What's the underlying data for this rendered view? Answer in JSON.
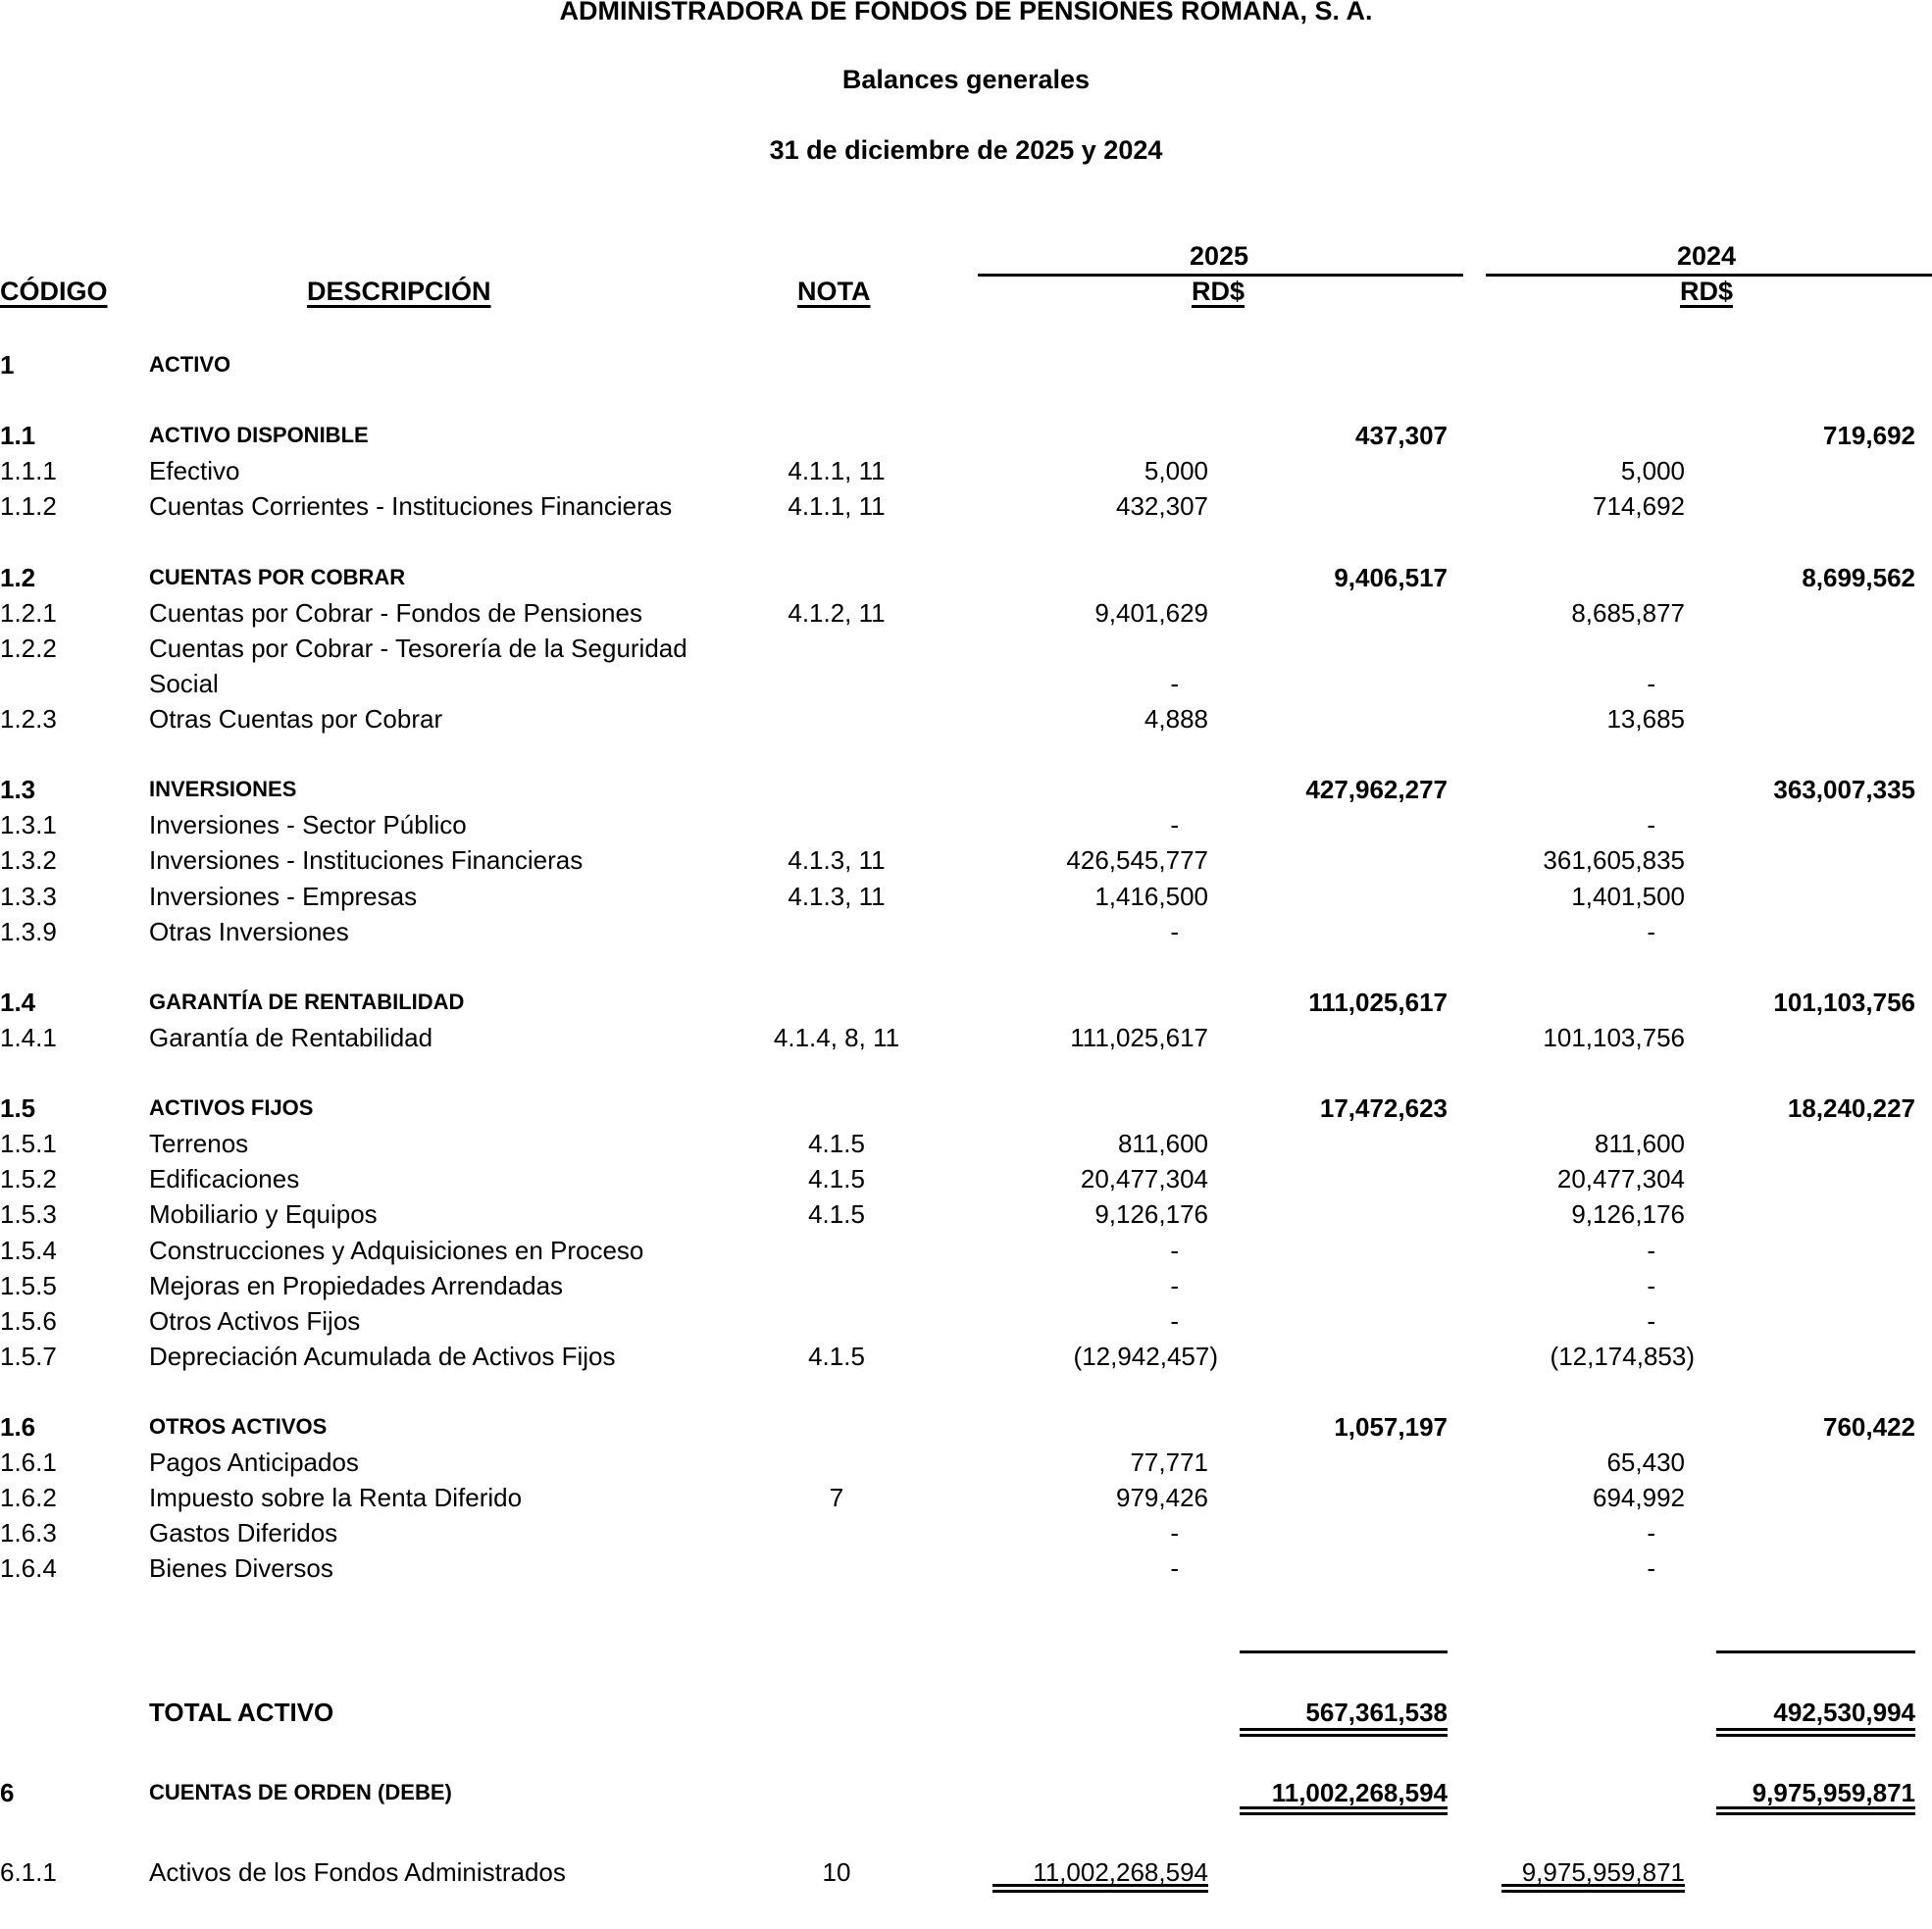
{
  "header": {
    "company": "ADMINISTRADORA DE FONDOS DE PENSIONES ROMANA, S. A.",
    "title": "Balances generales",
    "date": "31 de diciembre de 2025 y 2024"
  },
  "columns": {
    "code": "CÓDIGO",
    "description": "DESCRIPCIÓN",
    "note": "NOTA",
    "year1": "2025",
    "year2": "2024",
    "currency1": "RD$",
    "currency2": "RD$"
  },
  "rows": [
    {
      "type": "section",
      "code": "1",
      "desc": "ACTIVO"
    },
    {
      "type": "blank"
    },
    {
      "type": "section",
      "code": "1.1",
      "desc": "ACTIVO DISPONIBLE",
      "t2025": "437,307",
      "t2024": "719,692"
    },
    {
      "type": "item",
      "code": "1.1.1",
      "desc": "Efectivo",
      "nota": "4.1.1, 11",
      "v2025": "5,000",
      "v2024": "5,000"
    },
    {
      "type": "item",
      "code": "1.1.2",
      "desc": "Cuentas Corrientes - Instituciones Financieras",
      "nota": "4.1.1, 11",
      "v2025": "432,307",
      "v2024": "714,692"
    },
    {
      "type": "blank"
    },
    {
      "type": "section",
      "code": "1.2",
      "desc": "CUENTAS POR COBRAR",
      "t2025": "9,406,517",
      "t2024": "8,699,562"
    },
    {
      "type": "item",
      "code": "1.2.1",
      "desc": "Cuentas por Cobrar - Fondos de Pensiones",
      "nota": "4.1.2, 11",
      "v2025": "9,401,629",
      "v2024": "8,685,877"
    },
    {
      "type": "item",
      "code": "1.2.2",
      "desc": "Cuentas por Cobrar - Tesorería de la Seguridad"
    },
    {
      "type": "item",
      "desc": "Social",
      "v2025": "-",
      "v2024": "-"
    },
    {
      "type": "item",
      "code": "1.2.3",
      "desc": "Otras Cuentas por Cobrar",
      "v2025": "4,888",
      "v2024": "13,685"
    },
    {
      "type": "blank"
    },
    {
      "type": "section",
      "code": "1.3",
      "desc": "INVERSIONES",
      "t2025": "427,962,277",
      "t2024": "363,007,335"
    },
    {
      "type": "item",
      "code": "1.3.1",
      "desc": "Inversiones - Sector Público",
      "v2025": "-",
      "v2024": "-"
    },
    {
      "type": "item",
      "code": "1.3.2",
      "desc": "Inversiones - Instituciones Financieras",
      "nota": "4.1.3, 11",
      "v2025": "426,545,777",
      "v2024": "361,605,835"
    },
    {
      "type": "item",
      "code": "1.3.3",
      "desc": "Inversiones - Empresas",
      "nota": "4.1.3, 11",
      "v2025": "1,416,500",
      "v2024": "1,401,500"
    },
    {
      "type": "item",
      "code": "1.3.9",
      "desc": "Otras Inversiones",
      "v2025": "-",
      "v2024": "-"
    },
    {
      "type": "blank"
    },
    {
      "type": "section",
      "code": "1.4",
      "desc": "GARANTÍA DE RENTABILIDAD",
      "t2025": "111,025,617",
      "t2024": "101,103,756"
    },
    {
      "type": "item",
      "code": "1.4.1",
      "desc": "Garantía de Rentabilidad",
      "nota": "4.1.4, 8, 11",
      "v2025": "111,025,617",
      "v2024": "101,103,756"
    },
    {
      "type": "blank"
    },
    {
      "type": "section",
      "code": "1.5",
      "desc": "ACTIVOS FIJOS",
      "t2025": "17,472,623",
      "t2024": "18,240,227"
    },
    {
      "type": "item",
      "code": "1.5.1",
      "desc": "Terrenos",
      "nota": "4.1.5",
      "v2025": "811,600",
      "v2024": "811,600"
    },
    {
      "type": "item",
      "code": "1.5.2",
      "desc": "Edificaciones",
      "nota": "4.1.5",
      "v2025": "20,477,304",
      "v2024": "20,477,304"
    },
    {
      "type": "item",
      "code": "1.5.3",
      "desc": "Mobiliario y Equipos",
      "nota": "4.1.5",
      "v2025": "9,126,176",
      "v2024": "9,126,176"
    },
    {
      "type": "item",
      "code": "1.5.4",
      "desc": "Construcciones y Adquisiciones en Proceso",
      "v2025": "-",
      "v2024": "-"
    },
    {
      "type": "item",
      "code": "1.5.5",
      "desc": "Mejoras en Propiedades Arrendadas",
      "v2025": "-",
      "v2024": "-"
    },
    {
      "type": "item",
      "code": "1.5.6",
      "desc": "Otros Activos Fijos",
      "v2025": "-",
      "v2024": "-"
    },
    {
      "type": "item",
      "code": "1.5.7",
      "desc": "Depreciación Acumulada de Activos Fijos",
      "nota": "4.1.5",
      "v2025": "(12,942,457)",
      "v2024": "(12,174,853)"
    },
    {
      "type": "blank"
    },
    {
      "type": "section",
      "code": "1.6",
      "desc": "OTROS ACTIVOS",
      "t2025": "1,057,197",
      "t2024": "760,422"
    },
    {
      "type": "item",
      "code": "1.6.1",
      "desc": "Pagos Anticipados",
      "v2025": "77,771",
      "v2024": "65,430"
    },
    {
      "type": "item",
      "code": "1.6.2",
      "desc": "Impuesto sobre la Renta Diferido",
      "nota": "7",
      "v2025": "979,426",
      "v2024": "694,992"
    },
    {
      "type": "item",
      "code": "1.6.3",
      "desc": "Gastos Diferidos",
      "v2025": "-",
      "v2024": "-"
    },
    {
      "type": "item",
      "code": "1.6.4",
      "desc": "Bienes Diversos",
      "v2025": "-",
      "v2024": "-"
    }
  ],
  "total_activo": {
    "desc": "TOTAL ACTIVO",
    "t2025": "567,361,538",
    "t2024": "492,530,994"
  },
  "cuentas_orden": {
    "code": "6",
    "desc": "CUENTAS DE ORDEN (DEBE)",
    "t2025": "11,002,268,594",
    "t2024": "9,975,959,871"
  },
  "fondos": {
    "code": "6.1.1",
    "desc": "Activos de los Fondos Administrados",
    "nota": "10",
    "v2025": "11,002,268,594",
    "v2024": "9,975,959,871"
  }
}
